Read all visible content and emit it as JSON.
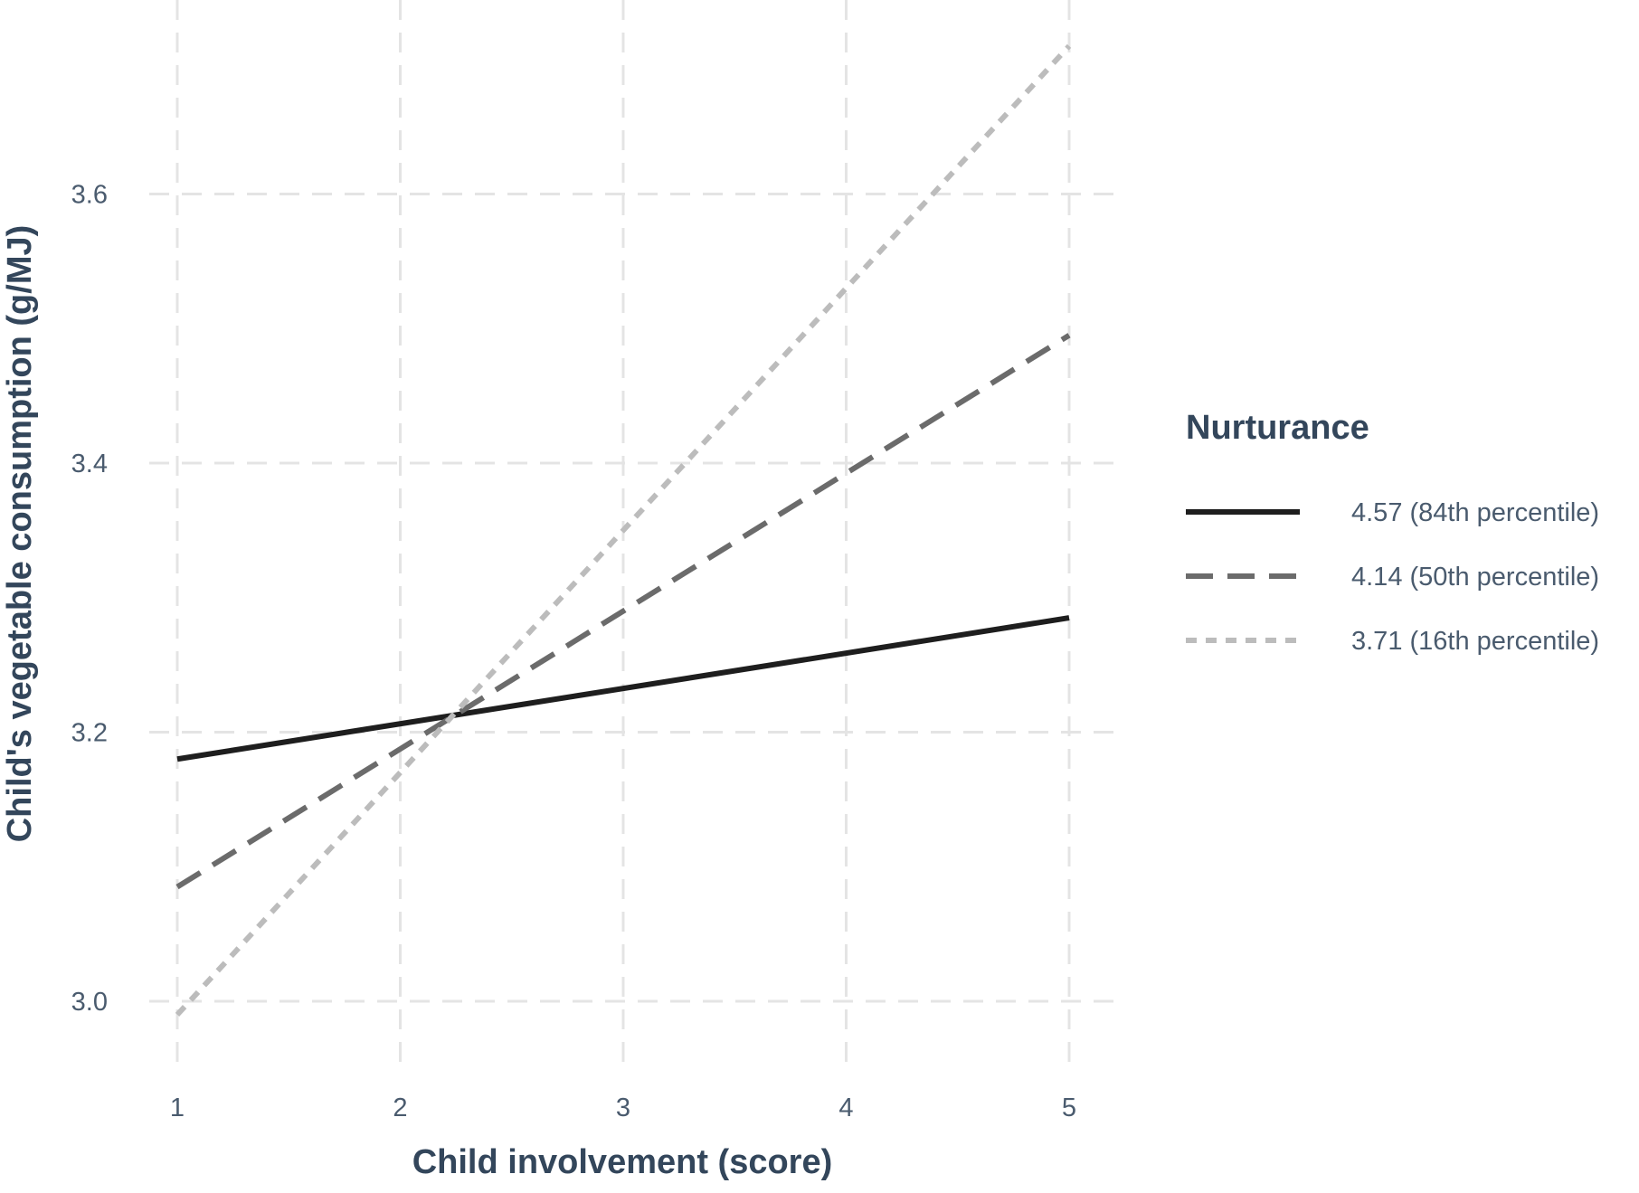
{
  "chart_data": {
    "type": "line",
    "xlabel": "Child involvement (score)",
    "ylabel": "Child's vegetable consumption (g/MJ)",
    "xlim": [
      0.9,
      5.2
    ],
    "ylim": [
      2.93,
      3.73
    ],
    "x_ticks": [
      1,
      2,
      3,
      4,
      5
    ],
    "x_tick_labels": [
      "1",
      "2",
      "3",
      "4",
      "5"
    ],
    "y_ticks": [
      3.0,
      3.2,
      3.4,
      3.6
    ],
    "y_tick_labels": [
      "3.0",
      "3.2",
      "3.4",
      "3.6"
    ],
    "grid": true,
    "grid_style": "dashed",
    "legend_placement": "right",
    "legend_title": "Nurturance",
    "series": [
      {
        "name": "4.57 (84th percentile)",
        "x": [
          1,
          5
        ],
        "y": [
          3.18,
          3.285
        ],
        "color": "#1e1e1e",
        "line_style": "solid"
      },
      {
        "name": "4.14 (50th percentile)",
        "x": [
          1,
          5
        ],
        "y": [
          3.085,
          3.495
        ],
        "color": "#6b6b6b",
        "line_style": "dashed"
      },
      {
        "name": "3.71 (16th percentile)",
        "x": [
          1,
          5
        ],
        "y": [
          2.99,
          3.71
        ],
        "color": "#bcbcbc",
        "line_style": "dotted"
      }
    ]
  }
}
